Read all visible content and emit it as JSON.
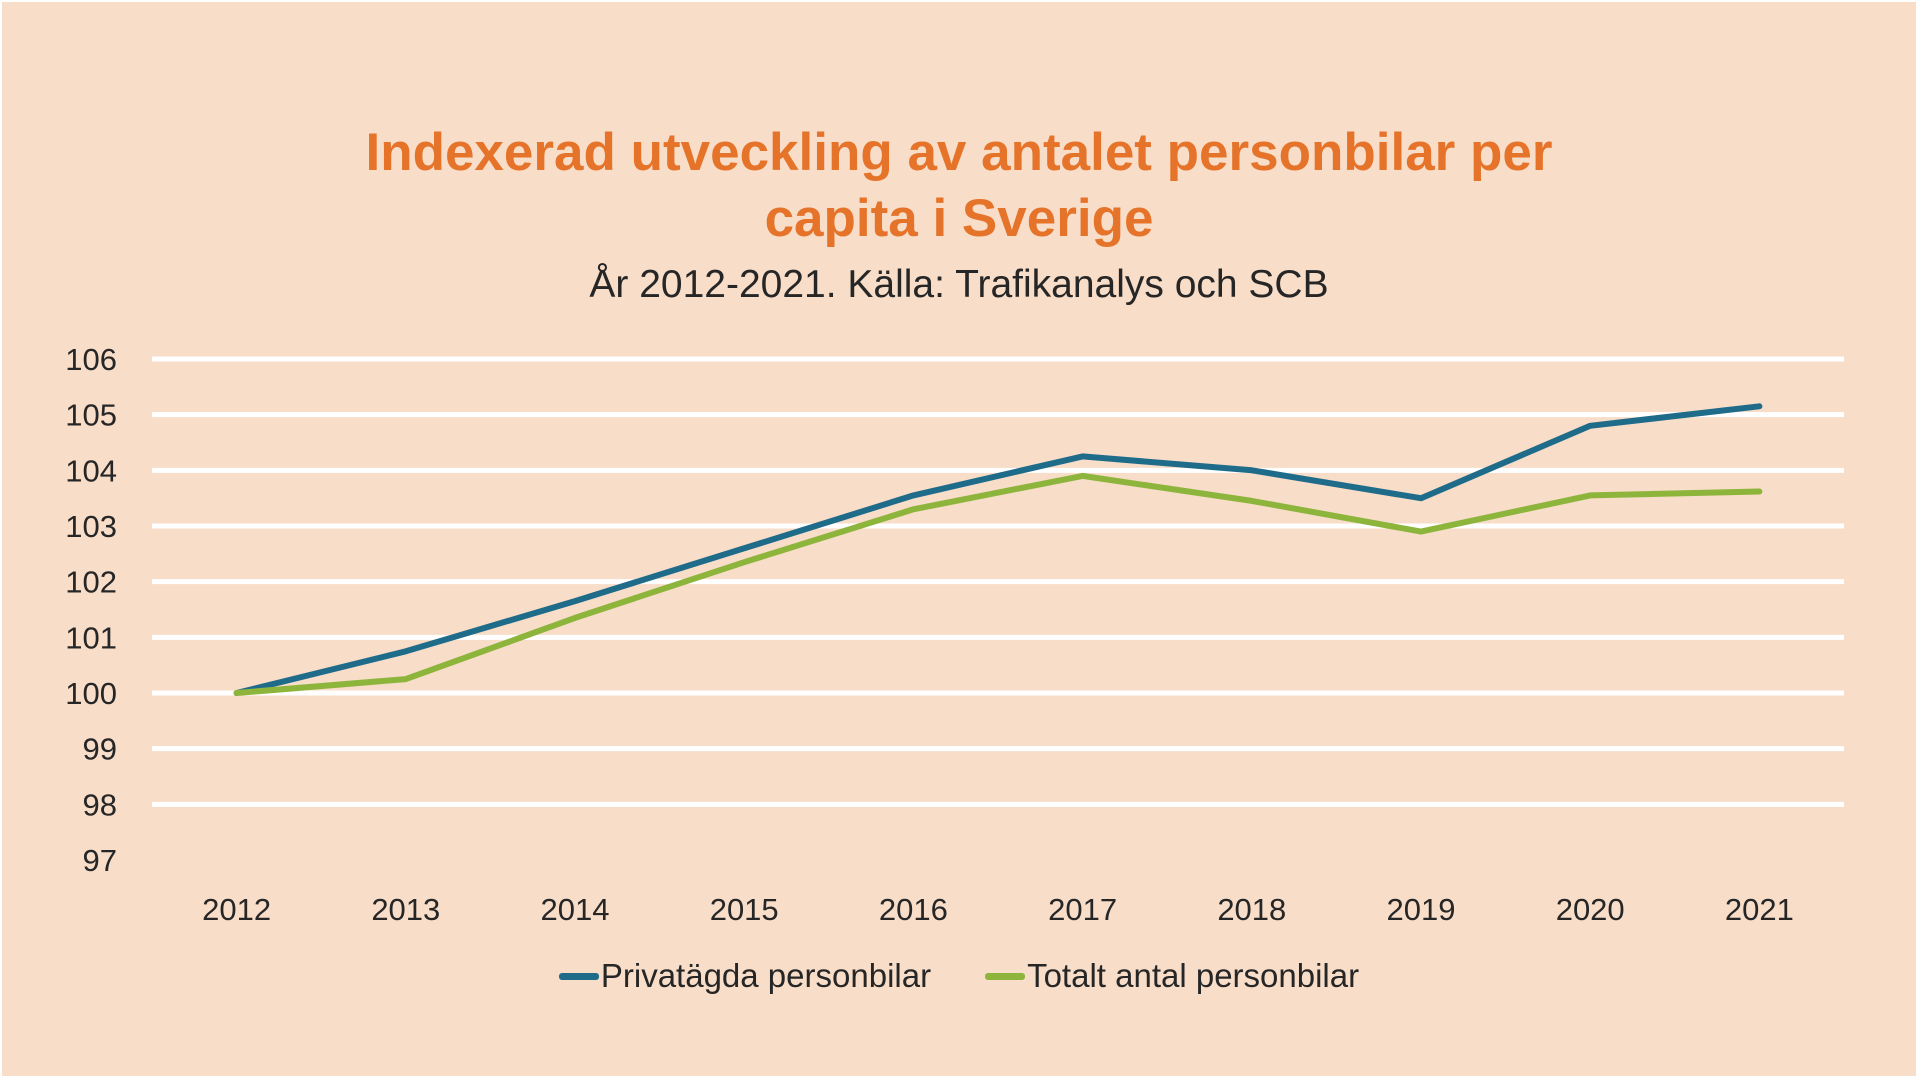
{
  "chart": {
    "title_line1": "Indexerad utveckling av antalet personbilar per",
    "title_line2": "capita i Sverige",
    "subtitle": "År 2012-2021. Källa: Trafikanalys och SCB"
  },
  "colors": {
    "background": "#f8ddc9",
    "title": "#e5742a",
    "gridline": "#ffffff",
    "series_private": "#1f6b8a",
    "series_total": "#8db53c"
  },
  "chart_data": {
    "type": "line",
    "title": "Indexerad utveckling av antalet personbilar per capita i Sverige",
    "subtitle": "År 2012-2021. Källa: Trafikanalys och SCB",
    "categories": [
      "2012",
      "2013",
      "2014",
      "2015",
      "2016",
      "2017",
      "2018",
      "2019",
      "2020",
      "2021"
    ],
    "series": [
      {
        "name": "Privatägda personbilar",
        "color": "#1f6b8a",
        "values": [
          100.0,
          100.75,
          101.65,
          102.6,
          103.55,
          104.25,
          104.0,
          103.5,
          104.8,
          105.15
        ]
      },
      {
        "name": "Totalt antal personbilar",
        "color": "#8db53c",
        "values": [
          100.0,
          100.25,
          101.35,
          102.35,
          103.3,
          103.9,
          103.45,
          102.9,
          103.55,
          103.62
        ]
      }
    ],
    "ylim": [
      97,
      106
    ],
    "yticks": [
      "97",
      "98",
      "99",
      "100",
      "101",
      "102",
      "103",
      "104",
      "105",
      "106"
    ],
    "grid": true,
    "legend_position": "bottom",
    "xlabel": "",
    "ylabel": ""
  }
}
